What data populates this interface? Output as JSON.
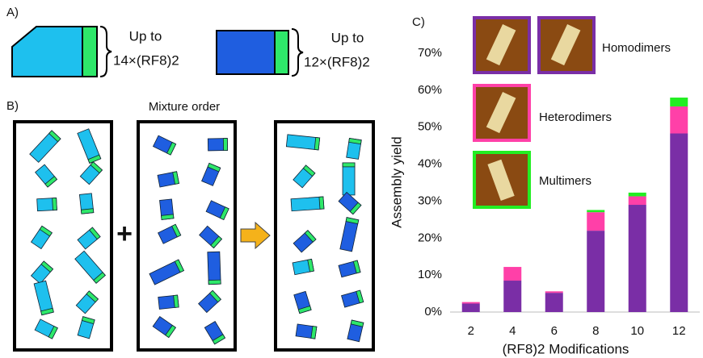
{
  "panel_a": {
    "label": "A)",
    "shape_1": {
      "up_to": "Up to",
      "count": "14×(RF8)2"
    },
    "shape_2": {
      "up_to": "Up to",
      "count": "12×(RF8)2"
    }
  },
  "panel_b": {
    "label": "B)",
    "title": "Mixture order",
    "plus": "+"
  },
  "chart_data": {
    "type": "bar",
    "stacked": true,
    "label": "C)",
    "x_label": "(RF8)2 Modifications",
    "y_label": "Assembly yield",
    "categories": [
      "2",
      "4",
      "6",
      "8",
      "10",
      "12"
    ],
    "series": [
      {
        "name": "Homodimers",
        "color": "#7a2ea6",
        "values": [
          2.3,
          8.5,
          5.2,
          22,
          29,
          48.3
        ]
      },
      {
        "name": "Heterodimers",
        "color": "#ff40a8",
        "values": [
          0.4,
          3.7,
          0.4,
          5,
          2.3,
          7.3
        ]
      },
      {
        "name": "Multimers",
        "color": "#22ee22",
        "values": [
          0,
          0,
          0,
          0.6,
          1,
          2.4
        ]
      }
    ],
    "ylim": [
      0,
      70
    ],
    "yticks": [
      {
        "value": 0,
        "label": "0%"
      },
      {
        "value": 10,
        "label": "10%"
      },
      {
        "value": 20,
        "label": "20%"
      },
      {
        "value": 30,
        "label": "30%"
      },
      {
        "value": 40,
        "label": "40%"
      },
      {
        "value": 50,
        "label": "50%"
      },
      {
        "value": 60,
        "label": "60%"
      },
      {
        "value": 70,
        "label": "70%"
      }
    ],
    "grid": false
  }
}
